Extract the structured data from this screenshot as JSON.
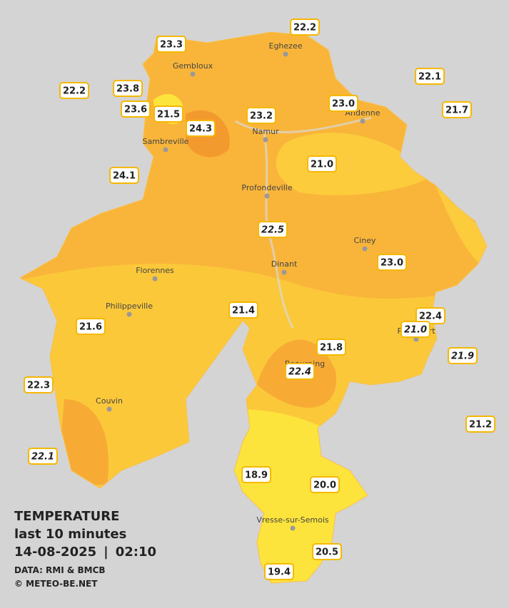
{
  "map": {
    "stations": [
      "23.3",
      "22.2",
      "22.1",
      "22.2",
      "23.8",
      "23.6",
      "21.5",
      "24.3",
      "23.2",
      "23.0",
      "21.7",
      "24.1",
      "21.0",
      "22.5",
      "23.0",
      "21.4",
      "22.4",
      "21.0",
      "21.6",
      "21.8",
      "21.9",
      "22.4",
      "22.3",
      "21.2",
      "22.1",
      "18.9",
      "20.0",
      "20.5",
      "19.4"
    ],
    "cities": [
      "Eghezee",
      "Gembloux",
      "Andenne",
      "Namur",
      "Sambreville",
      "Profondeville",
      "Ciney",
      "Dinant",
      "Florennes",
      "Philippeville",
      "Rochefort",
      "Beauraing",
      "Couvin",
      "Vresse-sur-Semois"
    ]
  },
  "legend": {
    "title": "TEMPERATURE",
    "period": "last 10 minutes",
    "date": "14-08-2025",
    "time": "02:10",
    "source": "DATA: RMI & BMCB",
    "credit": "© METEO-BE.NET"
  }
}
